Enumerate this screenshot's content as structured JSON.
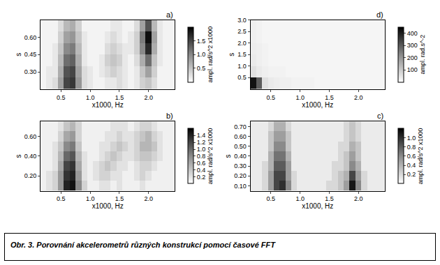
{
  "caption": "Obr. 3. Porovnání akcelerometrů různých konstrukcí pomocí časové FFT",
  "chart_data": [
    {
      "type": "heatmap",
      "title": "a)",
      "x_label": "x1000, Hz",
      "y_label": "s",
      "colorbar_title": "ampl. rad/s^2 x1000",
      "x": [
        0.2,
        0.3,
        0.4,
        0.5,
        0.6,
        0.7,
        0.8,
        0.9,
        1.0,
        1.1,
        1.2,
        1.3,
        1.4,
        1.5,
        1.6,
        1.7,
        1.8,
        1.9,
        2.0,
        2.1,
        2.2,
        2.3,
        2.4
      ],
      "y": [
        0.2,
        0.3,
        0.4,
        0.5,
        0.6,
        0.7
      ],
      "values": [
        [
          0.1,
          0.2,
          0.3,
          0.8,
          1.5,
          1.6,
          0.9,
          0.3,
          0.2,
          0.1,
          0.1,
          0.2,
          0.2,
          0.3,
          0.2,
          0.1,
          0.2,
          0.4,
          0.5,
          0.3,
          0.1,
          0.1,
          0.1
        ],
        [
          0.1,
          0.2,
          0.2,
          0.7,
          1.4,
          1.5,
          0.8,
          0.3,
          0.2,
          0.1,
          0.2,
          0.3,
          0.4,
          0.3,
          0.2,
          0.1,
          0.2,
          0.5,
          0.8,
          0.4,
          0.1,
          0.1,
          0.1
        ],
        [
          0.1,
          0.1,
          0.2,
          0.6,
          1.2,
          1.3,
          0.7,
          0.2,
          0.1,
          0.1,
          0.2,
          0.4,
          0.5,
          0.4,
          0.2,
          0.1,
          0.3,
          0.7,
          1.2,
          0.5,
          0.2,
          0.1,
          0.1
        ],
        [
          0.1,
          0.1,
          0.2,
          0.5,
          1.0,
          1.1,
          0.6,
          0.2,
          0.1,
          0.1,
          0.1,
          0.3,
          0.4,
          0.3,
          0.2,
          0.2,
          0.4,
          1.0,
          1.7,
          0.7,
          0.2,
          0.1,
          0.1
        ],
        [
          0.1,
          0.1,
          0.1,
          0.4,
          0.8,
          0.9,
          0.5,
          0.2,
          0.1,
          0.1,
          0.1,
          0.2,
          0.3,
          0.2,
          0.1,
          0.2,
          0.4,
          1.1,
          1.9,
          0.8,
          0.2,
          0.1,
          0.1
        ],
        [
          0.1,
          0.1,
          0.1,
          0.3,
          0.6,
          0.7,
          0.4,
          0.1,
          0.1,
          0.1,
          0.1,
          0.1,
          0.2,
          0.2,
          0.1,
          0.1,
          0.3,
          0.8,
          1.4,
          0.6,
          0.2,
          0.1,
          0.1
        ]
      ],
      "xlim": [
        0.15,
        2.45
      ],
      "xticks": [
        0.5,
        {
          "value": 1.0,
          "label": "1.0"
        },
        1.5,
        {
          "value": 2.0,
          "label": "2.0"
        }
      ],
      "ylim": [
        0.15,
        0.75
      ],
      "yticks": [
        {
          "value": 0.3,
          "label": "0.30"
        },
        {
          "value": 0.45,
          "label": "0.45"
        },
        {
          "value": 0.6,
          "label": "0.60"
        }
      ],
      "colorbar_range": [
        0,
        2.0
      ],
      "colorbar_ticks": [
        0.5,
        {
          "value": 1.0,
          "label": "1.0"
        },
        1.5
      ]
    },
    {
      "type": "heatmap",
      "title": "b)",
      "x_label": "x1000, Hz",
      "y_label": "s",
      "colorbar_title": "ampl. rad/s^2 x1000",
      "x": [
        0.2,
        0.3,
        0.4,
        0.5,
        0.6,
        0.7,
        0.8,
        0.9,
        1.0,
        1.1,
        1.2,
        1.3,
        1.4,
        1.5,
        1.6,
        1.7,
        1.8,
        1.9,
        2.0,
        2.1,
        2.2,
        2.3,
        2.4
      ],
      "y": [
        0.1,
        0.2,
        0.3,
        0.4,
        0.5,
        0.6,
        0.7
      ],
      "values": [
        [
          0.1,
          0.2,
          0.3,
          0.7,
          1.4,
          1.5,
          0.8,
          0.3,
          0.1,
          0.1,
          0.2,
          0.2,
          0.1,
          0.2,
          0.1,
          0.1,
          0.1,
          0.2,
          0.1,
          0.1,
          0.1,
          0.1,
          0.1
        ],
        [
          0.1,
          0.2,
          0.3,
          0.7,
          1.3,
          1.4,
          0.7,
          0.2,
          0.1,
          0.2,
          0.3,
          0.3,
          0.2,
          0.2,
          0.1,
          0.1,
          0.2,
          0.3,
          0.2,
          0.1,
          0.1,
          0.1,
          0.1
        ],
        [
          0.1,
          0.1,
          0.2,
          0.6,
          1.2,
          1.3,
          0.6,
          0.2,
          0.1,
          0.2,
          0.3,
          0.4,
          0.3,
          0.2,
          0.2,
          0.1,
          0.2,
          0.3,
          0.3,
          0.2,
          0.1,
          0.1,
          0.1
        ],
        [
          0.1,
          0.1,
          0.2,
          0.5,
          1.0,
          1.1,
          0.5,
          0.2,
          0.1,
          0.1,
          0.2,
          0.3,
          0.4,
          0.3,
          0.2,
          0.2,
          0.3,
          0.4,
          0.4,
          0.3,
          0.2,
          0.1,
          0.1
        ],
        [
          0.1,
          0.1,
          0.2,
          0.4,
          0.8,
          0.9,
          0.4,
          0.1,
          0.1,
          0.1,
          0.2,
          0.2,
          0.3,
          0.4,
          0.3,
          0.2,
          0.3,
          0.5,
          0.5,
          0.4,
          0.2,
          0.1,
          0.1
        ],
        [
          0.1,
          0.1,
          0.1,
          0.3,
          0.6,
          0.7,
          0.3,
          0.1,
          0.1,
          0.1,
          0.1,
          0.2,
          0.2,
          0.3,
          0.2,
          0.2,
          0.3,
          0.4,
          0.5,
          0.3,
          0.2,
          0.1,
          0.1
        ],
        [
          0.1,
          0.1,
          0.1,
          0.2,
          0.4,
          0.5,
          0.3,
          0.1,
          0.1,
          0.1,
          0.1,
          0.1,
          0.2,
          0.2,
          0.2,
          0.1,
          0.2,
          0.3,
          0.3,
          0.2,
          0.1,
          0.1,
          0.1
        ]
      ],
      "xlim": [
        0.15,
        2.45
      ],
      "xticks": [
        0.5,
        {
          "value": 1.0,
          "label": "1.0"
        },
        1.5,
        {
          "value": 2.0,
          "label": "2.0"
        }
      ],
      "ylim": [
        0.05,
        0.75
      ],
      "yticks": [
        {
          "value": 0.2,
          "label": "0.20"
        },
        {
          "value": 0.4,
          "label": "0.40"
        },
        {
          "value": 0.6,
          "label": "0.60"
        }
      ],
      "colorbar_range": [
        0,
        1.6
      ],
      "colorbar_ticks": [
        0.2,
        0.4,
        0.6,
        0.8,
        {
          "value": 1.0,
          "label": "1.0"
        },
        1.2,
        1.4
      ]
    },
    {
      "type": "heatmap",
      "title": "c)",
      "x_label": "x1000, Hz",
      "y_label": "s",
      "colorbar_title": "ampl. rad/s^2 x1000",
      "x": [
        0.2,
        0.3,
        0.4,
        0.5,
        0.6,
        0.7,
        0.8,
        0.9,
        1.0,
        1.1,
        1.2,
        1.3,
        1.4,
        1.5,
        1.6,
        1.7,
        1.8,
        1.9,
        2.0,
        2.1,
        2.2,
        2.3,
        2.4
      ],
      "y": [
        0.1,
        0.2,
        0.3,
        0.4,
        0.5,
        0.6,
        0.7
      ],
      "values": [
        [
          0.1,
          0.1,
          0.2,
          0.5,
          0.9,
          1.0,
          0.6,
          0.2,
          0.1,
          0.1,
          0.1,
          0.1,
          0.1,
          0.2,
          0.2,
          0.3,
          0.5,
          1.1,
          0.6,
          0.2,
          0.1,
          0.1,
          0.1
        ],
        [
          0.1,
          0.1,
          0.2,
          0.5,
          0.9,
          0.9,
          0.5,
          0.2,
          0.1,
          0.1,
          0.1,
          0.1,
          0.1,
          0.1,
          0.2,
          0.3,
          0.4,
          0.9,
          0.5,
          0.2,
          0.1,
          0.1,
          0.1
        ],
        [
          0.1,
          0.1,
          0.2,
          0.4,
          0.8,
          0.8,
          0.5,
          0.1,
          0.1,
          0.1,
          0.1,
          0.1,
          0.1,
          0.1,
          0.2,
          0.2,
          0.3,
          0.6,
          0.4,
          0.1,
          0.1,
          0.1,
          0.1
        ],
        [
          0.1,
          0.1,
          0.1,
          0.4,
          0.7,
          0.7,
          0.4,
          0.1,
          0.1,
          0.1,
          0.1,
          0.1,
          0.1,
          0.1,
          0.1,
          0.2,
          0.3,
          0.5,
          0.3,
          0.1,
          0.1,
          0.1,
          0.1
        ],
        [
          0.1,
          0.1,
          0.1,
          0.3,
          0.6,
          0.6,
          0.3,
          0.1,
          0.1,
          0.1,
          0.1,
          0.1,
          0.1,
          0.1,
          0.1,
          0.2,
          0.2,
          0.4,
          0.3,
          0.1,
          0.1,
          0.1,
          0.1
        ],
        [
          0.1,
          0.1,
          0.1,
          0.3,
          0.5,
          0.5,
          0.3,
          0.1,
          0.1,
          0.1,
          0.1,
          0.1,
          0.1,
          0.1,
          0.1,
          0.1,
          0.2,
          0.3,
          0.2,
          0.1,
          0.1,
          0.1,
          0.1
        ],
        [
          0.1,
          0.1,
          0.1,
          0.2,
          0.4,
          0.4,
          0.2,
          0.1,
          0.1,
          0.1,
          0.1,
          0.1,
          0.1,
          0.1,
          0.1,
          0.1,
          0.2,
          0.3,
          0.2,
          0.1,
          0.1,
          0.1,
          0.1
        ]
      ],
      "xlim": [
        0.15,
        2.45
      ],
      "xticks": [
        0.5,
        {
          "value": 1.0,
          "label": "1.0"
        },
        1.5,
        {
          "value": 2.0,
          "label": "2.0"
        }
      ],
      "ylim": [
        0.05,
        0.75
      ],
      "yticks": [
        {
          "value": 0.1,
          "label": "0.10"
        },
        {
          "value": 0.2,
          "label": "0.20"
        },
        {
          "value": 0.3,
          "label": "0.30"
        },
        {
          "value": 0.4,
          "label": "0.40"
        },
        {
          "value": 0.5,
          "label": "0.50"
        },
        {
          "value": 0.6,
          "label": "0.60"
        },
        {
          "value": 0.7,
          "label": "0.70"
        }
      ],
      "colorbar_range": [
        0,
        1.2
      ],
      "colorbar_ticks": [
        0.2,
        0.4,
        0.6,
        0.8,
        {
          "value": 1.0,
          "label": "1.0"
        }
      ]
    },
    {
      "type": "heatmap",
      "title": "d)",
      "x_label": "x1000, Hz",
      "y_label": "s",
      "colorbar_title": "ampl. rad.s^-2",
      "x": [
        0.2,
        0.3,
        0.4,
        0.5,
        0.6,
        0.7,
        0.8,
        0.9,
        1.0,
        1.1,
        1.2,
        1.3,
        1.4,
        1.5,
        1.6,
        1.7,
        1.8,
        1.9,
        2.0,
        2.1,
        2.2,
        2.3,
        2.4
      ],
      "y": [
        0.25,
        0.75,
        1.25,
        1.75,
        2.25,
        2.75
      ],
      "values": [
        [
          420,
          300,
          60,
          40,
          35,
          30,
          30,
          25,
          25,
          25,
          25,
          20,
          20,
          20,
          20,
          20,
          20,
          20,
          20,
          20,
          20,
          20,
          20
        ],
        [
          60,
          40,
          30,
          25,
          25,
          25,
          20,
          20,
          20,
          20,
          20,
          20,
          20,
          20,
          20,
          20,
          20,
          20,
          20,
          20,
          20,
          20,
          20
        ],
        [
          40,
          30,
          25,
          20,
          20,
          20,
          20,
          20,
          20,
          20,
          20,
          20,
          20,
          20,
          20,
          20,
          20,
          20,
          20,
          20,
          20,
          20,
          20
        ],
        [
          35,
          30,
          25,
          20,
          20,
          20,
          20,
          20,
          20,
          20,
          20,
          20,
          20,
          20,
          20,
          20,
          20,
          20,
          20,
          20,
          20,
          20,
          20
        ],
        [
          30,
          25,
          20,
          20,
          20,
          20,
          20,
          20,
          20,
          20,
          20,
          20,
          20,
          20,
          20,
          20,
          20,
          20,
          20,
          20,
          20,
          20,
          20
        ],
        [
          30,
          25,
          20,
          20,
          20,
          20,
          20,
          20,
          20,
          20,
          20,
          20,
          20,
          20,
          20,
          20,
          20,
          20,
          20,
          20,
          20,
          20,
          20
        ]
      ],
      "xlim": [
        0.15,
        2.45
      ],
      "xticks": [
        0.5,
        {
          "value": 1.0,
          "label": "1.0"
        },
        1.5,
        {
          "value": 2.0,
          "label": "2.0"
        }
      ],
      "ylim": [
        0,
        3.0
      ],
      "yticks": [
        0.5,
        {
          "value": 1.0,
          "label": "1.0"
        },
        1.5,
        {
          "value": 2.0,
          "label": "2.0"
        },
        2.5,
        {
          "value": 3.0,
          "label": "3.0"
        }
      ],
      "colorbar_range": [
        0,
        450
      ],
      "colorbar_ticks": [
        100,
        200,
        300,
        400
      ]
    }
  ]
}
